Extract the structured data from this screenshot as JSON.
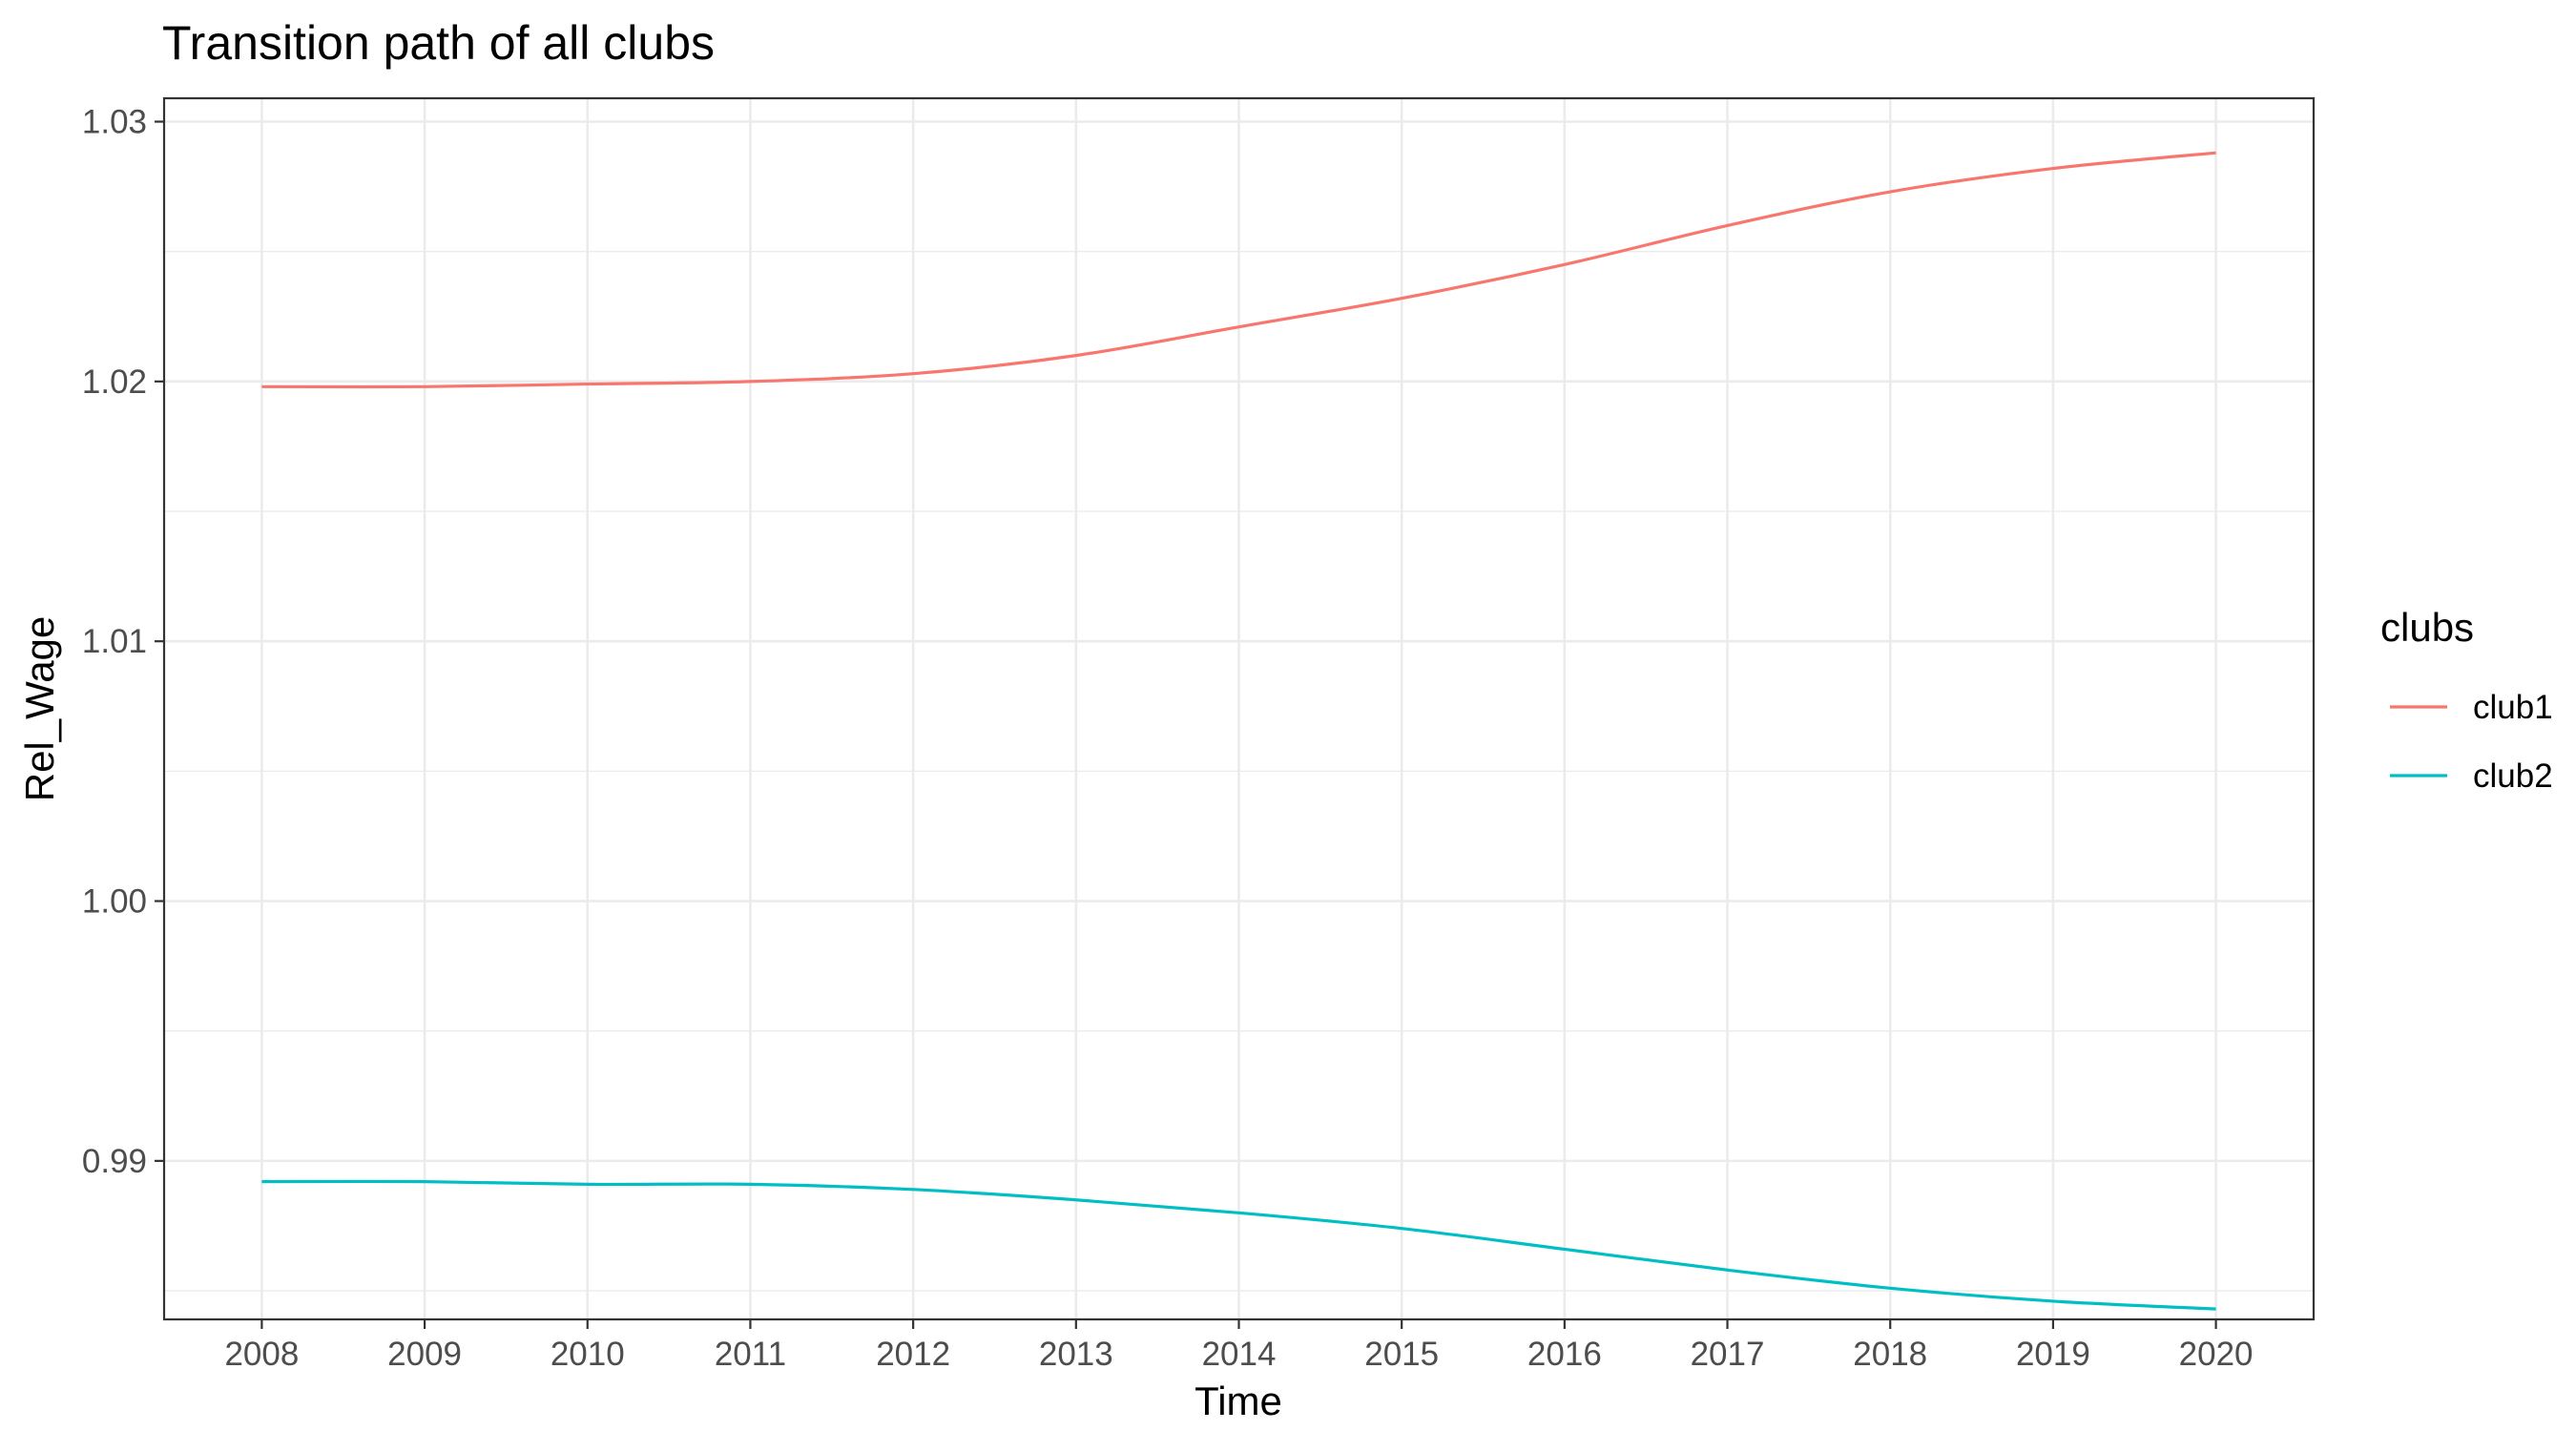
{
  "chart_data": {
    "type": "line",
    "title": "Transition path of all clubs",
    "xlabel": "Time",
    "ylabel": "Rel_Wage",
    "x": [
      2008,
      2009,
      2010,
      2011,
      2012,
      2013,
      2014,
      2015,
      2016,
      2017,
      2018,
      2019,
      2020
    ],
    "x_tick_labels": [
      "2008",
      "2009",
      "2010",
      "2011",
      "2012",
      "2013",
      "2014",
      "2015",
      "2016",
      "2017",
      "2018",
      "2019",
      "2020"
    ],
    "y_ticks": [
      0.99,
      1.0,
      1.01,
      1.02,
      1.03
    ],
    "y_tick_labels": [
      "0.99",
      "1.00",
      "1.01",
      "1.02",
      "1.03"
    ],
    "xlim": [
      2007.4,
      2020.6
    ],
    "ylim": [
      0.9839,
      1.0309
    ],
    "grid": true,
    "legend": {
      "title": "clubs",
      "position": "right"
    },
    "series": [
      {
        "name": "club1",
        "color": "#F8766D",
        "values": [
          1.0198,
          1.0198,
          1.0199,
          1.02,
          1.0203,
          1.021,
          1.0221,
          1.0232,
          1.0245,
          1.026,
          1.0273,
          1.0282,
          1.0288
        ]
      },
      {
        "name": "club2",
        "color": "#00BFC4",
        "values": [
          0.9892,
          0.9892,
          0.9891,
          0.9891,
          0.9889,
          0.9885,
          0.988,
          0.9874,
          0.9866,
          0.9858,
          0.9851,
          0.9846,
          0.9843
        ]
      }
    ]
  }
}
